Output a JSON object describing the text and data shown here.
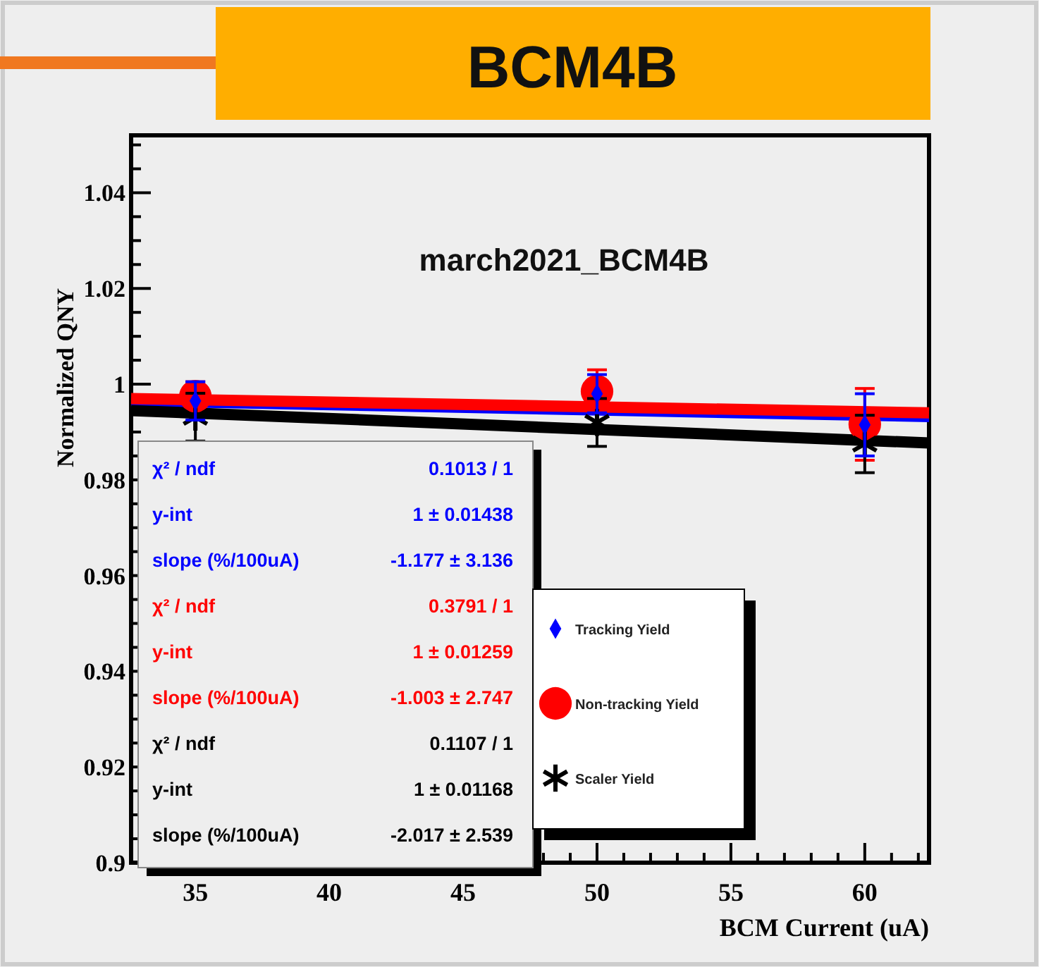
{
  "chart_data": {
    "type": "scatter",
    "title": "BCM4B",
    "subtitle": "march2021_BCM4B",
    "xlabel": "BCM Current (uA)",
    "ylabel": "Normalized QNY",
    "xlim": [
      32.6,
      62.4
    ],
    "ylim": [
      0.9,
      1.052
    ],
    "xticks": [
      {
        "value": 33,
        "label": null
      },
      {
        "value": 34,
        "label": null
      },
      35,
      {
        "value": 36,
        "label": null
      },
      {
        "value": 37,
        "label": null
      },
      {
        "value": 38,
        "label": null
      },
      {
        "value": 39,
        "label": null
      },
      40,
      {
        "value": 41,
        "label": null
      },
      {
        "value": 42,
        "label": null
      },
      {
        "value": 43,
        "label": null
      },
      {
        "value": 44,
        "label": null
      },
      45,
      {
        "value": 46,
        "label": null
      },
      {
        "value": 47,
        "label": null
      },
      {
        "value": 48,
        "label": null
      },
      {
        "value": 49,
        "label": null
      },
      50,
      {
        "value": 51,
        "label": null
      },
      {
        "value": 52,
        "label": null
      },
      {
        "value": 53,
        "label": null
      },
      {
        "value": 54,
        "label": null
      },
      55,
      {
        "value": 56,
        "label": null
      },
      {
        "value": 57,
        "label": null
      },
      {
        "value": 58,
        "label": null
      },
      {
        "value": 59,
        "label": null
      },
      60,
      {
        "value": 61,
        "label": null
      },
      {
        "value": 62,
        "label": null
      }
    ],
    "yticks": [
      0.9,
      {
        "value": 0.905,
        "label": null
      },
      {
        "value": 0.91,
        "label": null
      },
      {
        "value": 0.915,
        "label": null
      },
      0.92,
      {
        "value": 0.925,
        "label": null
      },
      {
        "value": 0.93,
        "label": null
      },
      {
        "value": 0.935,
        "label": null
      },
      0.94,
      {
        "value": 0.945,
        "label": null
      },
      {
        "value": 0.95,
        "label": null
      },
      {
        "value": 0.955,
        "label": null
      },
      0.96,
      {
        "value": 0.965,
        "label": null
      },
      {
        "value": 0.97,
        "label": null
      },
      {
        "value": 0.975,
        "label": null
      },
      0.98,
      {
        "value": 0.985,
        "label": null
      },
      {
        "value": 0.99,
        "label": null
      },
      {
        "value": 0.995,
        "label": null
      },
      1,
      {
        "value": 1.005,
        "label": null
      },
      {
        "value": 1.01,
        "label": null
      },
      {
        "value": 1.015,
        "label": null
      },
      1.02,
      {
        "value": 1.025,
        "label": null
      },
      {
        "value": 1.03,
        "label": null
      },
      {
        "value": 1.035,
        "label": null
      },
      1.04,
      {
        "value": 1.045,
        "label": null
      },
      {
        "value": 1.05,
        "label": null
      }
    ],
    "grid": false,
    "legend": "bottom right",
    "series": [
      {
        "type": "line",
        "color": "#0000ff",
        "x": [
          32.6,
          62.4
        ],
        "values": [
          0.9958,
          0.9925
        ],
        "marker": "none"
      },
      {
        "type": "line",
        "color": "#ff0000",
        "x": [
          32.6,
          62.4
        ],
        "values": [
          0.997,
          0.994
        ],
        "marker": "none"
      },
      {
        "type": "line",
        "color": "#000000",
        "x": [
          32.6,
          62.4
        ],
        "values": [
          0.9945,
          0.9877
        ],
        "marker": "none"
      },
      {
        "name": "Tracking Yield",
        "color": "#0000ff",
        "marker": "diamond",
        "x": [
          35,
          50,
          60
        ],
        "values": [
          0.9965,
          0.998,
          0.9915
        ],
        "errors": [
          0.004,
          0.004,
          0.0065
        ]
      },
      {
        "name": "Non-tracking Yield",
        "color": "#ff0000",
        "marker": "circle",
        "x": [
          35,
          50,
          60
        ],
        "values": [
          0.9975,
          0.9985,
          0.9916
        ],
        "errors": [
          0.003,
          0.0045,
          0.0075
        ]
      },
      {
        "name": "Scaler Yield",
        "color": "#000000",
        "marker": "cross",
        "x": [
          35,
          50,
          60
        ],
        "values": [
          0.9931,
          0.992,
          0.9875
        ],
        "errors": [
          0.005,
          0.005,
          0.006
        ]
      }
    ],
    "annotations": [
      "χ² / ndf",
      "0.1013 / 1",
      "y-int",
      "1 ± 0.01438",
      "slope (%/100uA)",
      "-1.177 ± 3.136",
      "χ² / ndf",
      "0.3791 / 1",
      "y-int",
      "1 ± 0.01259",
      "slope (%/100uA)",
      "-1.003 ± 2.747",
      "χ² / ndf",
      "0.1107 / 1",
      "y-int",
      "1 ± 0.01168",
      "slope (%/100uA)",
      "-2.017 ± 2.539"
    ]
  }
}
